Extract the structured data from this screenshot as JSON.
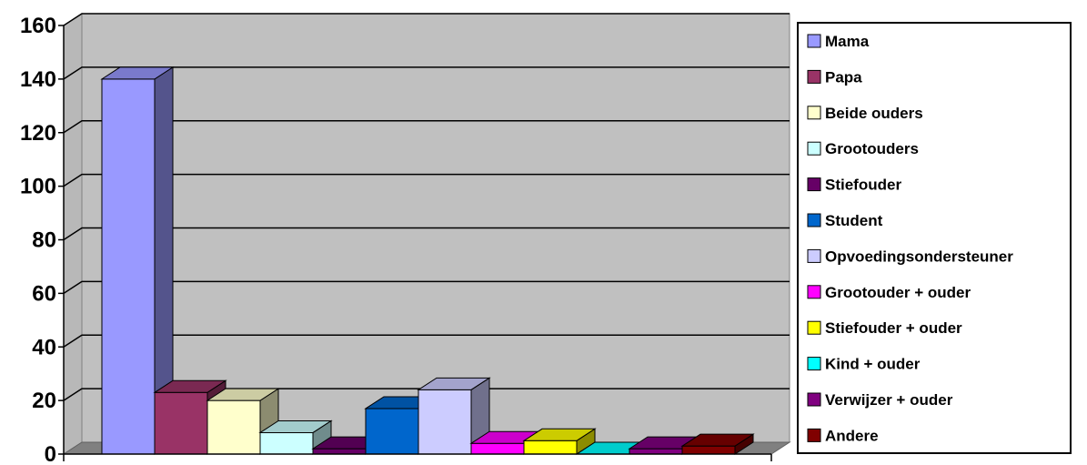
{
  "chart_data": {
    "type": "bar",
    "title": "",
    "xlabel": "",
    "ylabel": "",
    "ylim": [
      0,
      160
    ],
    "yticks": [
      0,
      20,
      40,
      60,
      80,
      100,
      120,
      140,
      160
    ],
    "grid": true,
    "legend_position": "right",
    "style": "3d-clustered-column",
    "series": [
      {
        "name": "Mama",
        "value": 140,
        "color": "#9999ff"
      },
      {
        "name": "Papa",
        "value": 23,
        "color": "#993366"
      },
      {
        "name": "Beide ouders",
        "value": 20,
        "color": "#ffffcc"
      },
      {
        "name": "Grootouders",
        "value": 8,
        "color": "#ccffff"
      },
      {
        "name": "Stiefouder",
        "value": 2,
        "color": "#660066"
      },
      {
        "name": "Student",
        "value": 17,
        "color": "#0066cc"
      },
      {
        "name": "Opvoedingsondersteuner",
        "value": 24,
        "color": "#ccccff"
      },
      {
        "name": "Grootouder + ouder",
        "value": 4,
        "color": "#ff00ff"
      },
      {
        "name": "Stiefouder + ouder",
        "value": 5,
        "color": "#ffff00"
      },
      {
        "name": "Kind + ouder",
        "value": 0,
        "color": "#00ffff"
      },
      {
        "name": "Verwijzer + ouder",
        "value": 2,
        "color": "#800080"
      },
      {
        "name": "Andere",
        "value": 3,
        "color": "#800000"
      }
    ]
  }
}
